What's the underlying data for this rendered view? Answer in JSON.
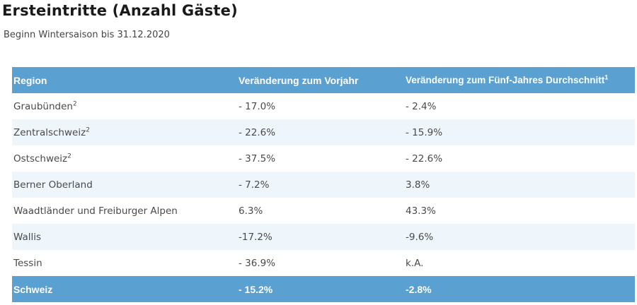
{
  "title": "Ersteintritte (Anzahl Gäste)",
  "subtitle": "Beginn Wintersaison bis 31.12.2020",
  "table": {
    "headers": {
      "region": "Region",
      "change_prev_year": "Veränderung zum Vorjahr",
      "change_five_year": "Veränderung zum Fünf-Jahres Durchschnitt",
      "change_five_year_footnote": "1"
    },
    "rows": [
      {
        "region": "Graubünden",
        "footnote": "2",
        "change_prev_year": "- 17.0%",
        "change_five_year": "- 2.4%"
      },
      {
        "region": "Zentralschweiz",
        "footnote": "2",
        "change_prev_year": "- 22.6%",
        "change_five_year": "- 15.9%"
      },
      {
        "region": "Ostschweiz",
        "footnote": "2",
        "change_prev_year": "- 37.5%",
        "change_five_year": "- 22.6%"
      },
      {
        "region": "Berner Oberland",
        "footnote": "",
        "change_prev_year": "- 7.2%",
        "change_five_year": "3.8%"
      },
      {
        "region": "Waadtländer und Freiburger Alpen",
        "footnote": "",
        "change_prev_year": "6.3%",
        "change_five_year": "43.3%"
      },
      {
        "region": "Wallis",
        "footnote": "",
        "change_prev_year": "-17.2%",
        "change_five_year": "-9.6%"
      },
      {
        "region": "Tessin",
        "footnote": "",
        "change_prev_year": "- 36.9%",
        "change_five_year": "k.A."
      }
    ],
    "total": {
      "region": "Schweiz",
      "change_prev_year": "- 15.2%",
      "change_five_year": "-2.8%"
    }
  },
  "colors": {
    "header_bg": "#5aa0d0",
    "row_tint": "#eef5fb",
    "header_text": "#ffffff",
    "body_text": "#4a4a4a"
  }
}
